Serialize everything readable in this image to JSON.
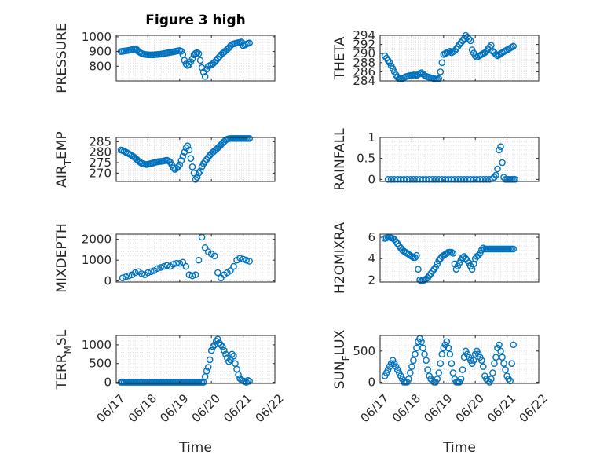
{
  "figure_title": "Figure 3 high",
  "colors": {
    "marker": "#0072bd",
    "axis": "#262626",
    "grid": "#dcdcdc",
    "background": "#ffffff"
  },
  "chart_data": [
    {
      "type": "scatter",
      "ylabel": "PRESSURE",
      "title": "Figure 3 high",
      "xlabel": "",
      "xticks": [
        "06/17",
        "06/18",
        "06/19",
        "06/20",
        "06/21",
        "06/22"
      ],
      "xlim": [
        0,
        5
      ],
      "ylim": [
        700,
        1010
      ],
      "yticks": [
        800,
        900,
        1000
      ],
      "grid": true,
      "marker": "circle-open",
      "x": [
        0.15,
        0.2,
        0.25,
        0.3,
        0.35,
        0.4,
        0.45,
        0.5,
        0.55,
        0.6,
        0.65,
        0.7,
        0.75,
        0.8,
        0.85,
        0.9,
        0.95,
        1.0,
        1.05,
        1.1,
        1.15,
        1.2,
        1.25,
        1.3,
        1.35,
        1.4,
        1.45,
        1.5,
        1.55,
        1.6,
        1.65,
        1.7,
        1.75,
        1.8,
        1.85,
        1.9,
        1.95,
        2.0,
        2.05,
        2.1,
        2.15,
        2.2,
        2.25,
        2.3,
        2.35,
        2.4,
        2.45,
        2.5,
        2.55,
        2.6,
        2.65,
        2.7,
        2.75,
        2.8,
        2.85,
        2.9,
        2.95,
        3.0,
        3.05,
        3.1,
        3.15,
        3.2,
        3.25,
        3.3,
        3.35,
        3.4,
        3.45,
        3.5,
        3.55,
        3.6,
        3.65,
        3.7,
        3.75,
        3.8,
        3.85,
        3.9,
        3.95,
        4.0,
        4.05,
        4.1,
        4.15,
        4.2
      ],
      "y": [
        900,
        902,
        903,
        905,
        906,
        908,
        910,
        913,
        916,
        918,
        912,
        900,
        893,
        887,
        883,
        880,
        879,
        878,
        877,
        877,
        877,
        878,
        879,
        880,
        881,
        882,
        884,
        886,
        888,
        890,
        892,
        894,
        896,
        898,
        900,
        903,
        905,
        907,
        902,
        880,
        840,
        815,
        805,
        812,
        830,
        850,
        878,
        888,
        892,
        885,
        840,
        790,
        760,
        730,
        780,
        800,
        805,
        810,
        818,
        828,
        840,
        852,
        865,
        878,
        888,
        895,
        905,
        915,
        925,
        938,
        948,
        952,
        955,
        958,
        960,
        962,
        965,
        940,
        945,
        950,
        955,
        958
      ]
    },
    {
      "type": "scatter",
      "ylabel": "THETA",
      "title": "",
      "xlabel": "",
      "xticks": [
        "06/17",
        "06/18",
        "06/19",
        "06/20",
        "06/21",
        "06/22"
      ],
      "xlim": [
        0,
        5
      ],
      "ylim": [
        284,
        294
      ],
      "yticks": [
        284,
        286,
        288,
        290,
        292,
        294
      ],
      "grid": true,
      "marker": "circle-open",
      "x": [
        0.15,
        0.2,
        0.25,
        0.3,
        0.35,
        0.4,
        0.45,
        0.5,
        0.55,
        0.6,
        0.65,
        0.7,
        0.75,
        0.8,
        0.85,
        0.9,
        0.95,
        1.0,
        1.05,
        1.1,
        1.15,
        1.2,
        1.25,
        1.3,
        1.35,
        1.4,
        1.45,
        1.5,
        1.55,
        1.6,
        1.65,
        1.7,
        1.75,
        1.8,
        1.85,
        1.9,
        1.95,
        2.0,
        2.05,
        2.1,
        2.15,
        2.2,
        2.25,
        2.3,
        2.35,
        2.4,
        2.45,
        2.5,
        2.55,
        2.6,
        2.65,
        2.7,
        2.75,
        2.8,
        2.85,
        2.9,
        2.95,
        3.0,
        3.05,
        3.1,
        3.15,
        3.2,
        3.25,
        3.3,
        3.35,
        3.4,
        3.45,
        3.5,
        3.55,
        3.6,
        3.65,
        3.7,
        3.75,
        3.8,
        3.85,
        3.9,
        3.95,
        4.0,
        4.05,
        4.1,
        4.15,
        4.2
      ],
      "y": [
        289.5,
        289,
        288.5,
        288,
        287.3,
        286.7,
        286,
        285.3,
        284.8,
        284.5,
        284.4,
        284.5,
        284.7,
        284.9,
        285,
        285.1,
        285.2,
        285.2,
        285.3,
        285.3,
        285.2,
        285.4,
        285.6,
        285.8,
        285.5,
        285.2,
        285,
        284.9,
        284.8,
        284.7,
        284.6,
        284.5,
        284.4,
        284.4,
        284.5,
        286,
        288,
        289.8,
        290,
        290.2,
        290.4,
        290.5,
        290.2,
        290.4,
        290.6,
        291,
        291.5,
        292,
        292.4,
        292.8,
        293.3,
        294,
        293.6,
        293.2,
        292.8,
        290.8,
        290.1,
        289.5,
        289.2,
        289.4,
        289.6,
        289.8,
        290,
        290.2,
        290.5,
        291,
        291.4,
        291.8,
        290.5,
        290.2,
        289.8,
        289.5,
        289.7,
        290,
        290.2,
        290.4,
        290.6,
        290.8,
        291,
        291.2,
        291.4,
        291.6
      ]
    },
    {
      "type": "scatter",
      "ylabel": "AIR_TEMP",
      "title": "",
      "xlabel": "",
      "xticks": [
        "06/17",
        "06/18",
        "06/19",
        "06/20",
        "06/21",
        "06/22"
      ],
      "xlim": [
        0,
        5
      ],
      "ylim": [
        266,
        287
      ],
      "yticks": [
        270,
        275,
        280,
        285
      ],
      "grid": true,
      "marker": "circle-open",
      "x": [
        0.15,
        0.2,
        0.25,
        0.3,
        0.35,
        0.4,
        0.45,
        0.5,
        0.55,
        0.6,
        0.65,
        0.7,
        0.75,
        0.8,
        0.85,
        0.9,
        0.95,
        1.0,
        1.05,
        1.1,
        1.15,
        1.2,
        1.25,
        1.3,
        1.35,
        1.4,
        1.45,
        1.5,
        1.55,
        1.6,
        1.65,
        1.7,
        1.75,
        1.8,
        1.85,
        1.9,
        1.95,
        2.0,
        2.05,
        2.1,
        2.15,
        2.2,
        2.25,
        2.3,
        2.35,
        2.4,
        2.45,
        2.5,
        2.55,
        2.6,
        2.65,
        2.7,
        2.75,
        2.8,
        2.85,
        2.9,
        2.95,
        3.0,
        3.05,
        3.1,
        3.15,
        3.2,
        3.25,
        3.3,
        3.35,
        3.4,
        3.45,
        3.5,
        3.55,
        3.6,
        3.65,
        3.7,
        3.75,
        3.8,
        3.85,
        3.9,
        3.95,
        4.0,
        4.05,
        4.1,
        4.15,
        4.2
      ],
      "y": [
        281,
        280.8,
        280.5,
        280,
        279.6,
        279.2,
        278.8,
        278.3,
        277.8,
        277.2,
        276.5,
        275.8,
        275.2,
        274.7,
        274.4,
        274.2,
        274.1,
        274.2,
        274.4,
        274.6,
        274.8,
        275,
        275.2,
        275.4,
        275.5,
        275.6,
        275.7,
        275.8,
        276,
        276.1,
        275.8,
        275.2,
        274,
        272.5,
        271.8,
        272.3,
        273,
        274,
        276,
        278,
        280,
        282,
        283,
        281,
        277,
        273,
        270,
        267,
        268,
        270,
        271,
        273,
        274.5,
        275.5,
        276.5,
        277.5,
        278.5,
        279.3,
        280,
        280.7,
        281.3,
        282,
        282.7,
        283.5,
        284.3,
        285,
        285.8,
        286.2,
        286.4,
        286.5,
        286.5,
        286.5,
        286.5,
        286.5,
        286.5,
        286.5,
        286.5,
        286.5,
        286.5,
        286.5,
        286.5,
        286.5
      ]
    },
    {
      "type": "scatter",
      "ylabel": "RAINFALL",
      "title": "",
      "xlabel": "",
      "xticks": [
        "06/17",
        "06/18",
        "06/19",
        "06/20",
        "06/21",
        "06/22"
      ],
      "xlim": [
        0,
        5
      ],
      "ylim": [
        -0.05,
        1
      ],
      "yticks": [
        0,
        0.5,
        1
      ],
      "grid": true,
      "marker": "circle-open",
      "x": [
        0.25,
        0.35,
        0.45,
        0.55,
        0.65,
        0.75,
        0.85,
        0.95,
        1.05,
        1.15,
        1.25,
        1.35,
        1.45,
        1.55,
        1.65,
        1.75,
        1.85,
        1.95,
        2.05,
        2.15,
        2.25,
        2.35,
        2.45,
        2.55,
        2.65,
        2.75,
        2.85,
        2.95,
        3.05,
        3.15,
        3.25,
        3.35,
        3.45,
        3.55,
        3.6,
        3.65,
        3.7,
        3.75,
        3.8,
        3.85,
        3.9,
        3.95,
        4.0,
        4.05,
        4.1,
        4.15,
        4.2,
        4.25
      ],
      "y": [
        0,
        0,
        0,
        0,
        0,
        0,
        0,
        0,
        0,
        0,
        0,
        0,
        0,
        0,
        0,
        0,
        0,
        0,
        0,
        0,
        0,
        0,
        0,
        0,
        0,
        0,
        0,
        0,
        0,
        0,
        0,
        0,
        0,
        0.02,
        0.05,
        0.1,
        0.25,
        0.7,
        0.78,
        0.4,
        0.05,
        0,
        0,
        0,
        0,
        0,
        0,
        0
      ]
    },
    {
      "type": "scatter",
      "ylabel": "MIXDEPTH",
      "title": "",
      "xlabel": "",
      "xticks": [
        "06/17",
        "06/18",
        "06/19",
        "06/20",
        "06/21",
        "06/22"
      ],
      "xlim": [
        0,
        5
      ],
      "ylim": [
        -50,
        2250
      ],
      "yticks": [
        0,
        1000,
        2000
      ],
      "grid": true,
      "marker": "circle-open",
      "x": [
        0.2,
        0.3,
        0.4,
        0.5,
        0.6,
        0.7,
        0.8,
        0.9,
        1.0,
        1.1,
        1.2,
        1.3,
        1.4,
        1.5,
        1.6,
        1.7,
        1.8,
        1.9,
        2.0,
        2.1,
        2.2,
        2.3,
        2.4,
        2.5,
        2.6,
        2.7,
        2.8,
        2.9,
        3.0,
        3.1,
        3.2,
        3.3,
        3.4,
        3.5,
        3.6,
        3.7,
        3.8,
        3.9,
        4.0,
        4.1,
        4.2
      ],
      "y": [
        150,
        200,
        250,
        300,
        400,
        450,
        350,
        300,
        400,
        450,
        500,
        600,
        650,
        700,
        750,
        700,
        800,
        850,
        850,
        900,
        700,
        300,
        250,
        300,
        1000,
        2100,
        1600,
        1400,
        1300,
        1200,
        400,
        150,
        300,
        400,
        500,
        700,
        1000,
        1100,
        1050,
        1000,
        950
      ]
    },
    {
      "type": "scatter",
      "ylabel": "H2OMIXRA",
      "title": "",
      "xlabel": "",
      "xticks": [
        "06/17",
        "06/18",
        "06/19",
        "06/20",
        "06/21",
        "06/22"
      ],
      "xlim": [
        0,
        5
      ],
      "ylim": [
        1.8,
        6.3
      ],
      "yticks": [
        2,
        4,
        6
      ],
      "grid": true,
      "marker": "circle-open",
      "x": [
        0.15,
        0.2,
        0.25,
        0.3,
        0.35,
        0.4,
        0.45,
        0.5,
        0.55,
        0.6,
        0.65,
        0.7,
        0.75,
        0.8,
        0.85,
        0.9,
        0.95,
        1.0,
        1.05,
        1.1,
        1.15,
        1.2,
        1.25,
        1.3,
        1.35,
        1.4,
        1.45,
        1.5,
        1.55,
        1.6,
        1.65,
        1.7,
        1.75,
        1.8,
        1.85,
        1.9,
        1.95,
        2.0,
        2.05,
        2.1,
        2.15,
        2.2,
        2.25,
        2.3,
        2.35,
        2.4,
        2.45,
        2.5,
        2.55,
        2.6,
        2.65,
        2.7,
        2.75,
        2.8,
        2.85,
        2.9,
        2.95,
        3.0,
        3.05,
        3.1,
        3.15,
        3.2,
        3.25,
        3.3,
        3.35,
        3.4,
        3.45,
        3.5,
        3.55,
        3.6,
        3.65,
        3.7,
        3.75,
        3.8,
        3.85,
        3.9,
        3.95,
        4.0,
        4.05,
        4.1,
        4.15,
        4.2
      ],
      "y": [
        5.9,
        5.95,
        6,
        6,
        5.95,
        5.9,
        5.8,
        5.6,
        5.4,
        5.2,
        5,
        4.8,
        4.7,
        4.6,
        4.5,
        4.4,
        4.3,
        4.2,
        4.1,
        4.1,
        4.3,
        3,
        2,
        1.9,
        1.95,
        2,
        2.1,
        2.2,
        2.4,
        2.6,
        2.8,
        3,
        3.2,
        3.5,
        3.8,
        4,
        4.2,
        4.3,
        4.4,
        4.5,
        4.6,
        4.6,
        4.6,
        4.5,
        3.5,
        3,
        3.3,
        3.6,
        3.9,
        4.1,
        4.2,
        4,
        3.8,
        3.6,
        3.3,
        3,
        3.5,
        4,
        4.2,
        4.3,
        4.5,
        4.8,
        5,
        4.9,
        4.9,
        4.9,
        4.9,
        4.9,
        4.9,
        4.9,
        4.9,
        4.9,
        4.9,
        4.9,
        4.9,
        4.9,
        4.9,
        4.9,
        4.9,
        4.9,
        4.9,
        4.9
      ]
    },
    {
      "type": "scatter",
      "ylabel": "TERR_MSL",
      "title": "",
      "xlabel": "Time",
      "xticks": [
        "06/17",
        "06/18",
        "06/19",
        "06/20",
        "06/21",
        "06/22"
      ],
      "xlim": [
        0,
        5
      ],
      "ylim": [
        -30,
        1250
      ],
      "yticks": [
        0,
        500,
        1000
      ],
      "grid": true,
      "marker": "circle-open",
      "x": [
        0.15,
        0.2,
        0.25,
        0.3,
        0.35,
        0.4,
        0.45,
        0.5,
        0.55,
        0.6,
        0.65,
        0.7,
        0.75,
        0.8,
        0.85,
        0.9,
        0.95,
        1.0,
        1.05,
        1.1,
        1.15,
        1.2,
        1.25,
        1.3,
        1.35,
        1.4,
        1.45,
        1.5,
        1.55,
        1.6,
        1.65,
        1.7,
        1.75,
        1.8,
        1.85,
        1.9,
        1.95,
        2.0,
        2.05,
        2.1,
        2.15,
        2.2,
        2.25,
        2.3,
        2.35,
        2.4,
        2.45,
        2.5,
        2.55,
        2.6,
        2.65,
        2.7,
        2.75,
        2.8,
        2.85,
        2.9,
        2.95,
        3.0,
        3.05,
        3.1,
        3.15,
        3.2,
        3.25,
        3.3,
        3.35,
        3.4,
        3.45,
        3.5,
        3.55,
        3.6,
        3.65,
        3.7,
        3.75,
        3.8,
        3.85,
        3.9,
        3.95,
        4.0,
        4.05,
        4.1,
        4.15,
        4.2
      ],
      "y": [
        0,
        0,
        0,
        0,
        0,
        0,
        0,
        0,
        0,
        0,
        0,
        0,
        0,
        0,
        0,
        0,
        0,
        0,
        0,
        0,
        0,
        0,
        0,
        0,
        0,
        0,
        0,
        0,
        0,
        0,
        0,
        0,
        0,
        0,
        0,
        0,
        0,
        0,
        0,
        0,
        0,
        0,
        0,
        0,
        0,
        0,
        0,
        0,
        0,
        0,
        0,
        0,
        0,
        150,
        300,
        400,
        600,
        850,
        950,
        1000,
        1100,
        1150,
        1050,
        1000,
        950,
        850,
        750,
        650,
        550,
        600,
        750,
        700,
        500,
        350,
        200,
        100,
        60,
        40,
        20,
        0,
        50,
        30
      ]
    },
    {
      "type": "scatter",
      "ylabel": "SUN_FLUX",
      "title": "",
      "xlabel": "Time",
      "xticks": [
        "06/17",
        "06/18",
        "06/19",
        "06/20",
        "06/21",
        "06/22"
      ],
      "xlim": [
        0,
        5
      ],
      "ylim": [
        -20,
        750
      ],
      "yticks": [
        0,
        500
      ],
      "grid": true,
      "marker": "circle-open",
      "x": [
        0.15,
        0.2,
        0.25,
        0.3,
        0.35,
        0.4,
        0.45,
        0.5,
        0.55,
        0.6,
        0.65,
        0.7,
        0.75,
        0.8,
        0.85,
        0.9,
        0.95,
        1.0,
        1.05,
        1.1,
        1.15,
        1.2,
        1.25,
        1.3,
        1.35,
        1.4,
        1.45,
        1.5,
        1.55,
        1.6,
        1.65,
        1.7,
        1.75,
        1.8,
        1.85,
        1.9,
        1.95,
        2.0,
        2.05,
        2.1,
        2.15,
        2.2,
        2.25,
        2.3,
        2.35,
        2.4,
        2.45,
        2.5,
        2.55,
        2.6,
        2.65,
        2.7,
        2.75,
        2.8,
        2.85,
        2.9,
        2.95,
        3.0,
        3.05,
        3.1,
        3.15,
        3.2,
        3.25,
        3.3,
        3.35,
        3.4,
        3.45,
        3.5,
        3.55,
        3.6,
        3.65,
        3.7,
        3.75,
        3.8,
        3.85,
        3.9,
        3.95,
        4.0,
        4.05,
        4.1,
        4.15,
        4.2
      ],
      "y": [
        100,
        150,
        200,
        250,
        300,
        350,
        300,
        250,
        200,
        150,
        100,
        50,
        0,
        0,
        0,
        50,
        150,
        250,
        350,
        450,
        550,
        650,
        700,
        650,
        550,
        450,
        350,
        200,
        100,
        50,
        20,
        0,
        0,
        50,
        150,
        300,
        450,
        550,
        600,
        650,
        550,
        450,
        300,
        150,
        50,
        0,
        0,
        0,
        50,
        200,
        400,
        500,
        450,
        400,
        350,
        300,
        350,
        450,
        500,
        450,
        400,
        350,
        250,
        100,
        50,
        20,
        0,
        50,
        150,
        300,
        400,
        550,
        600,
        500,
        400,
        300,
        200,
        100,
        50,
        20,
        300,
        600
      ]
    }
  ]
}
